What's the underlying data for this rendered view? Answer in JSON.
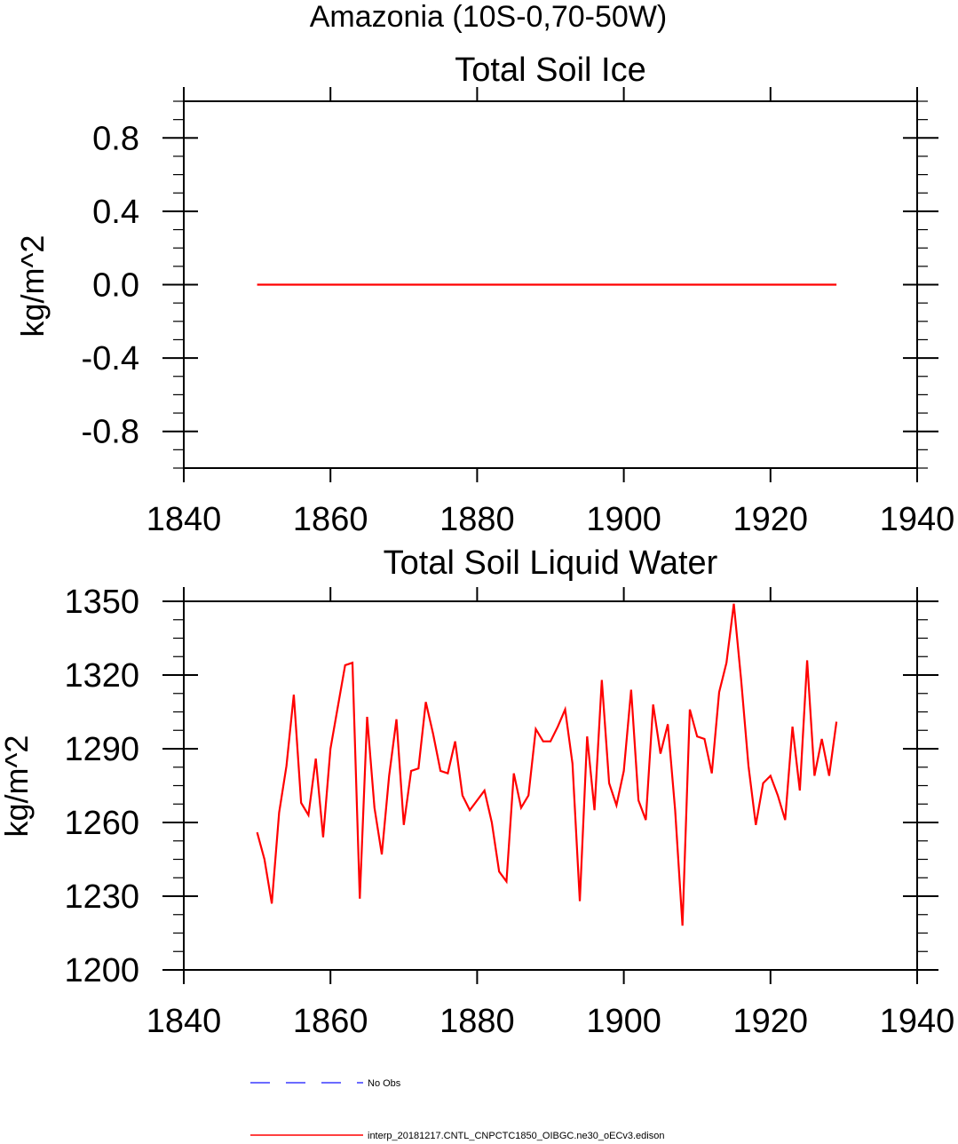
{
  "figure_title": "Amazonia (10S-0,70-50W)",
  "colors": {
    "model": "#ff0000",
    "obs": "#3a3aff",
    "axis": "#000000"
  },
  "legend": [
    {
      "label": "No Obs",
      "style": "dashed",
      "color": "#3a3aff"
    },
    {
      "label": "interp_20181217.CNTL_CNPCTC1850_OIBGC.ne30_oECv3.edison",
      "style": "solid",
      "color": "#ff0000"
    }
  ],
  "chart_data": [
    {
      "type": "line",
      "title": "Total Soil Ice",
      "xlabel": "",
      "ylabel": "kg/m^2",
      "xlim": [
        1840,
        1940
      ],
      "ylim": [
        -1.0,
        1.0
      ],
      "xticks": [
        1840,
        1860,
        1880,
        1900,
        1920,
        1940
      ],
      "xtick_labels": [
        "1840",
        "1860",
        "1880",
        "1900",
        "1920",
        "1940"
      ],
      "yticks": [
        0.8,
        0.4,
        0.0,
        -0.4,
        -0.8
      ],
      "ytick_labels": [
        "0.8",
        "0.4",
        "0.0",
        "-0.4",
        "-0.8"
      ],
      "grid": false,
      "series": [
        {
          "name": "interp_20181217.CNTL_CNPCTC1850_OIBGC.ne30_oECv3.edison",
          "x": [
            1850,
            1929
          ],
          "values": [
            0.0,
            0.0
          ]
        }
      ]
    },
    {
      "type": "line",
      "title": "Total Soil Liquid Water",
      "xlabel": "",
      "ylabel": "kg/m^2",
      "xlim": [
        1840,
        1940
      ],
      "ylim": [
        1200,
        1350
      ],
      "xticks": [
        1840,
        1860,
        1880,
        1900,
        1920,
        1940
      ],
      "xtick_labels": [
        "1840",
        "1860",
        "1880",
        "1900",
        "1920",
        "1940"
      ],
      "yticks": [
        1350,
        1320,
        1290,
        1260,
        1230,
        1200
      ],
      "ytick_labels": [
        "1350",
        "1320",
        "1290",
        "1260",
        "1230",
        "1200"
      ],
      "grid": false,
      "series": [
        {
          "name": "interp_20181217.CNTL_CNPCTC1850_OIBGC.ne30_oECv3.edison",
          "x_start": 1850,
          "values": [
            1256,
            1245,
            1227,
            1264,
            1283,
            1312,
            1268,
            1263,
            1286,
            1254,
            1290,
            1307,
            1324,
            1325,
            1229,
            1303,
            1266,
            1247,
            1279,
            1302,
            1259,
            1281,
            1282,
            1309,
            1296,
            1281,
            1280,
            1293,
            1271,
            1265,
            1269,
            1273,
            1260,
            1240,
            1236,
            1280,
            1266,
            1271,
            1298,
            1293,
            1293,
            1299,
            1306,
            1284,
            1228,
            1295,
            1265,
            1318,
            1276,
            1267,
            1281,
            1314,
            1269,
            1261,
            1308,
            1288,
            1300,
            1265,
            1218,
            1306,
            1295,
            1294,
            1280,
            1313,
            1325,
            1349,
            1318,
            1283,
            1259,
            1276,
            1279,
            1271,
            1261,
            1299,
            1273,
            1326,
            1279,
            1294,
            1279,
            1301
          ]
        }
      ]
    }
  ]
}
